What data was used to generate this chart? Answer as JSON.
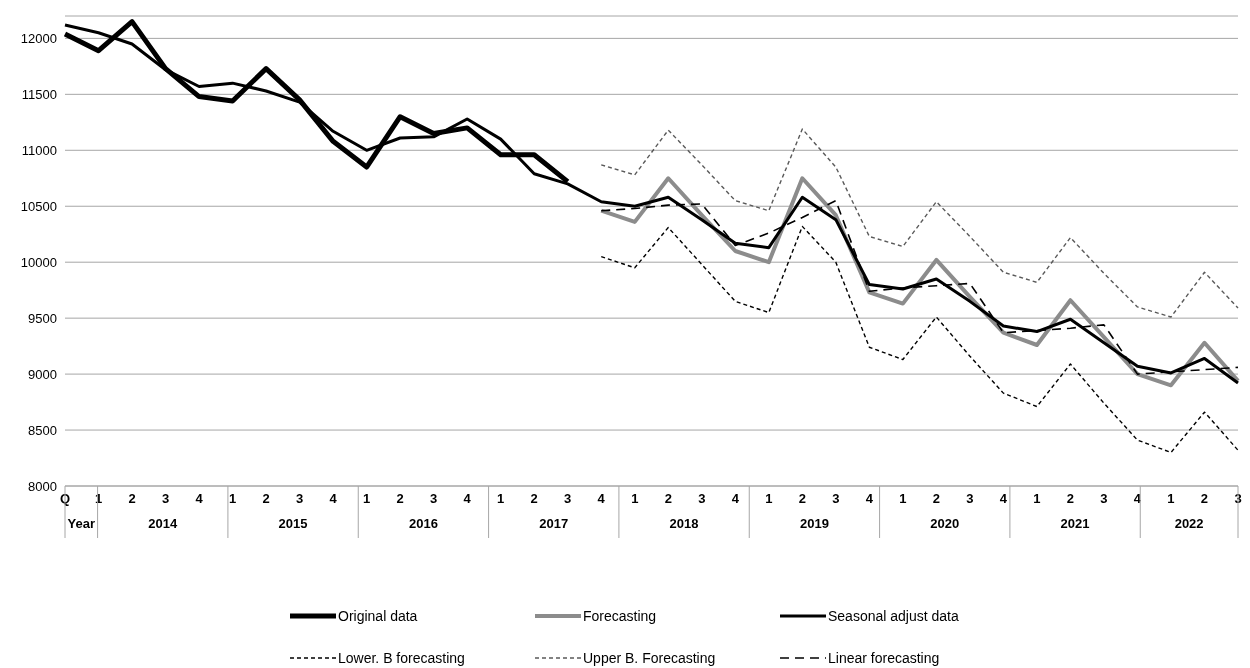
{
  "chart_data": {
    "type": "line",
    "categories": [
      "Q",
      "1",
      "2",
      "3",
      "4",
      "1",
      "2",
      "3",
      "4",
      "1",
      "2",
      "3",
      "4",
      "1",
      "2",
      "3",
      "4",
      "1",
      "2",
      "3",
      "4",
      "1",
      "2",
      "3",
      "4",
      "1",
      "2",
      "3",
      "4",
      "1",
      "2",
      "3",
      "4",
      "1",
      "2",
      "3"
    ],
    "annotations": [
      "Year",
      "2014",
      "2015",
      "2016",
      "2017",
      "2018",
      "2019",
      "2020",
      "2021",
      "2022"
    ],
    "series": [
      {
        "name": "Original data",
        "color": "#000000",
        "line_style": "solid",
        "values": [
          12040,
          11890,
          12150,
          11730,
          11480,
          11440,
          11730,
          11450,
          11080,
          10850,
          11300,
          11150,
          11200,
          10960,
          10960,
          10720,
          null,
          null,
          null,
          null,
          null,
          null,
          null,
          null,
          null,
          null,
          null,
          null,
          null,
          null,
          null,
          null,
          null,
          null,
          null,
          null
        ]
      },
      {
        "name": "Forecasting",
        "color": "#8c8c8c",
        "line_style": "solid",
        "values": [
          null,
          null,
          null,
          null,
          null,
          null,
          null,
          null,
          null,
          null,
          null,
          null,
          null,
          null,
          null,
          null,
          10460,
          10360,
          10750,
          10420,
          10100,
          10000,
          10750,
          10420,
          9730,
          9630,
          10020,
          9690,
          9370,
          9260,
          9660,
          9330,
          9000,
          8900,
          9280,
          8940
        ]
      },
      {
        "name": "Seasonal adjust data",
        "color": "#000000",
        "line_style": "solid",
        "values": [
          12120,
          12050,
          11950,
          11720,
          11570,
          11600,
          11530,
          11430,
          11170,
          11000,
          11110,
          11120,
          11280,
          11100,
          10790,
          10700,
          10540,
          10500,
          10580,
          10380,
          10170,
          10130,
          10580,
          10380,
          9800,
          9760,
          9850,
          9650,
          9430,
          9380,
          9490,
          9280,
          9070,
          9010,
          9140,
          8920
        ]
      },
      {
        "name": "Lower. B forecasting",
        "color": "#000000",
        "line_style": "dotted",
        "values": [
          null,
          null,
          null,
          null,
          null,
          null,
          null,
          null,
          null,
          null,
          null,
          null,
          null,
          null,
          null,
          null,
          10050,
          9950,
          10310,
          9980,
          9650,
          9550,
          10320,
          10000,
          9240,
          9130,
          9510,
          9160,
          8830,
          8710,
          9090,
          8740,
          8410,
          8300,
          8660,
          8320
        ]
      },
      {
        "name": "Upper B. Forecasting",
        "color": "#595959",
        "line_style": "dotted",
        "values": [
          null,
          null,
          null,
          null,
          null,
          null,
          null,
          null,
          null,
          null,
          null,
          null,
          null,
          null,
          null,
          null,
          10870,
          10780,
          11180,
          10870,
          10550,
          10460,
          11190,
          10850,
          10230,
          10140,
          10540,
          10230,
          9910,
          9820,
          10220,
          9900,
          9600,
          9510,
          9910,
          9590
        ]
      },
      {
        "name": "Linear forecasting",
        "color": "#000000",
        "line_style": "dashed",
        "values": [
          null,
          null,
          null,
          null,
          null,
          null,
          null,
          null,
          null,
          null,
          null,
          null,
          null,
          null,
          null,
          null,
          10460,
          10480,
          10510,
          10520,
          10150,
          10260,
          10400,
          10550,
          9740,
          9770,
          9790,
          9810,
          9370,
          9390,
          9410,
          9440,
          9000,
          9020,
          9040,
          9060
        ]
      }
    ],
    "ylim": [
      8000,
      12200
    ],
    "yticks": [
      8000,
      8500,
      9000,
      9500,
      10000,
      10500,
      11000,
      11500,
      12000
    ],
    "grid": "y",
    "legend": "bottom",
    "marker": "none"
  }
}
